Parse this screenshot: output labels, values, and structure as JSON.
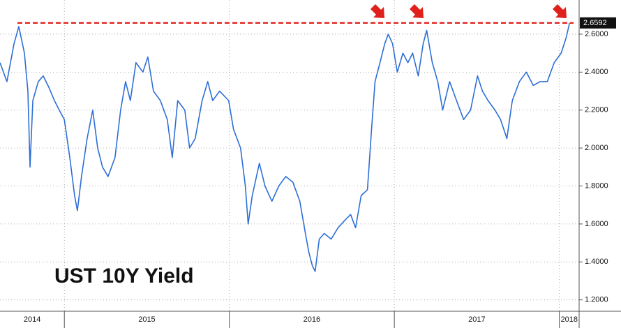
{
  "chart_data": {
    "type": "line",
    "annotation": "UST 10Y Yield",
    "x": [
      2014.61,
      2014.652,
      2014.695,
      2014.724,
      2014.758,
      2014.779,
      2014.792,
      2014.809,
      2014.842,
      2014.872,
      2014.906,
      2014.94,
      2014.969,
      2015.0,
      2015.033,
      2015.062,
      2015.079,
      2015.104,
      2015.138,
      2015.172,
      2015.202,
      2015.231,
      2015.265,
      2015.307,
      2015.341,
      2015.371,
      2015.4,
      2015.434,
      2015.476,
      2015.506,
      2015.54,
      2015.582,
      2015.624,
      2015.654,
      2015.687,
      2015.73,
      2015.759,
      2015.793,
      2015.835,
      2015.869,
      2015.899,
      2015.941,
      2015.996,
      2016.025,
      2016.068,
      2016.097,
      2016.114,
      2016.139,
      2016.182,
      2016.216,
      2016.258,
      2016.3,
      2016.342,
      2016.385,
      2016.427,
      2016.461,
      2016.482,
      2016.503,
      2016.52,
      2016.545,
      2016.575,
      2016.617,
      2016.659,
      2016.701,
      2016.735,
      2016.765,
      2016.799,
      2016.837,
      2016.862,
      2016.883,
      2016.913,
      2016.942,
      2016.963,
      2016.989,
      2017.018,
      2017.052,
      2017.082,
      2017.111,
      2017.145,
      2017.175,
      2017.196,
      2017.23,
      2017.263,
      2017.293,
      2017.335,
      2017.377,
      2017.42,
      2017.462,
      2017.504,
      2017.534,
      2017.568,
      2017.61,
      2017.644,
      2017.682,
      2017.715,
      2017.758,
      2017.8,
      2017.842,
      2017.884,
      2017.927,
      2017.969,
      2018.011,
      2018.041,
      2018.062
    ],
    "values": [
      2.45,
      2.35,
      2.55,
      2.64,
      2.5,
      2.3,
      1.9,
      2.25,
      2.35,
      2.38,
      2.32,
      2.25,
      2.2,
      2.15,
      1.95,
      1.75,
      1.67,
      1.85,
      2.05,
      2.2,
      2.0,
      1.9,
      1.85,
      1.95,
      2.2,
      2.35,
      2.25,
      2.45,
      2.4,
      2.48,
      2.3,
      2.25,
      2.15,
      1.95,
      2.25,
      2.2,
      2.0,
      2.05,
      2.25,
      2.35,
      2.25,
      2.3,
      2.25,
      2.1,
      2.0,
      1.8,
      1.6,
      1.75,
      1.92,
      1.8,
      1.72,
      1.8,
      1.85,
      1.82,
      1.72,
      1.55,
      1.45,
      1.38,
      1.35,
      1.52,
      1.55,
      1.52,
      1.58,
      1.62,
      1.65,
      1.58,
      1.75,
      1.78,
      2.1,
      2.35,
      2.45,
      2.55,
      2.6,
      2.55,
      2.4,
      2.5,
      2.45,
      2.5,
      2.38,
      2.55,
      2.62,
      2.45,
      2.35,
      2.2,
      2.35,
      2.25,
      2.15,
      2.2,
      2.38,
      2.3,
      2.25,
      2.2,
      2.15,
      2.05,
      2.25,
      2.35,
      2.4,
      2.33,
      2.35,
      2.35,
      2.45,
      2.5,
      2.58,
      2.6592
    ],
    "color": "#2d6fd6",
    "last_value": 2.6592,
    "reference_line": 2.6592,
    "reference_color": "#e0201b",
    "xlim": [
      2014.61,
      2018.12
    ],
    "xticks": [
      {
        "value": 2014.805,
        "label": "2014"
      },
      {
        "value": 2015.5,
        "label": "2015"
      },
      {
        "value": 2016.5,
        "label": "2016"
      },
      {
        "value": 2017.5,
        "label": "2017"
      },
      {
        "value": 2018.06,
        "label": "2018"
      }
    ],
    "xgrid": [
      2015,
      2016,
      2017,
      2018
    ],
    "ylim": [
      1.14,
      2.78
    ],
    "yticks": [
      {
        "value": 1.2,
        "label": "1.2000"
      },
      {
        "value": 1.4,
        "label": "1.4000"
      },
      {
        "value": 1.6,
        "label": "1.6000"
      },
      {
        "value": 1.8,
        "label": "1.8000"
      },
      {
        "value": 2.0,
        "label": "2.0000"
      },
      {
        "value": 2.2,
        "label": "2.2000"
      },
      {
        "value": 2.4,
        "label": "2.4000"
      },
      {
        "value": 2.6,
        "label": "2.6000"
      }
    ],
    "grid": true
  }
}
